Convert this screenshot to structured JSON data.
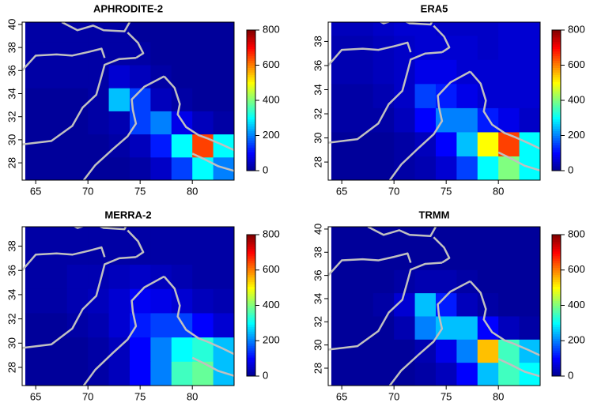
{
  "chart_data": [
    {
      "type": "heatmap",
      "title": "APHRODITE-2",
      "x": [
        65,
        67,
        69,
        71,
        73,
        75,
        77,
        79,
        81,
        83
      ],
      "y": [
        27.5,
        29.5,
        31.5,
        33.5,
        35.5,
        37.5,
        39.5
      ],
      "values": [
        [
          10,
          10,
          10,
          10,
          10,
          20,
          50,
          150,
          300,
          200
        ],
        [
          10,
          10,
          10,
          10,
          20,
          40,
          120,
          300,
          650,
          300
        ],
        [
          10,
          10,
          10,
          20,
          30,
          150,
          200,
          80,
          40,
          20
        ],
        [
          10,
          10,
          10,
          20,
          250,
          150,
          40,
          20,
          10,
          10
        ],
        [
          20,
          20,
          20,
          20,
          60,
          40,
          20,
          10,
          10,
          10
        ],
        [
          20,
          20,
          20,
          20,
          20,
          20,
          10,
          10,
          10,
          10
        ],
        [
          20,
          20,
          20,
          20,
          20,
          10,
          10,
          10,
          10,
          10
        ]
      ],
      "xlim": [
        63.7,
        84
      ],
      "ylim": [
        26.5,
        40.2
      ],
      "xticks": [
        65,
        70,
        75,
        80
      ],
      "yticks": [
        28,
        30,
        32,
        34,
        36,
        38,
        40
      ],
      "colorbar_lim": [
        0,
        800
      ],
      "colorbar_ticks": [
        0,
        200,
        400,
        600,
        800
      ],
      "colormap": [
        "#00008f",
        "#0000ff",
        "#0080ff",
        "#00ffff",
        "#80ff80",
        "#ffff00",
        "#ff8000",
        "#ff0000",
        "#800000"
      ]
    },
    {
      "type": "heatmap",
      "title": "ERA5",
      "x": [
        65,
        67,
        69,
        71,
        73,
        75,
        77,
        79,
        81,
        83
      ],
      "y": [
        27.5,
        29.5,
        31.5,
        33.5,
        35.5,
        37.5,
        39.5
      ],
      "values": [
        [
          10,
          10,
          10,
          20,
          30,
          60,
          150,
          300,
          400,
          300
        ],
        [
          10,
          10,
          10,
          20,
          40,
          100,
          250,
          500,
          650,
          300
        ],
        [
          20,
          20,
          20,
          40,
          100,
          200,
          200,
          120,
          80,
          50
        ],
        [
          20,
          20,
          30,
          50,
          150,
          120,
          80,
          60,
          60,
          60
        ],
        [
          30,
          30,
          40,
          50,
          80,
          80,
          60,
          60,
          60,
          60
        ],
        [
          30,
          30,
          40,
          50,
          60,
          60,
          60,
          50,
          60,
          60
        ],
        [
          40,
          40,
          50,
          60,
          60,
          50,
          50,
          50,
          60,
          60
        ]
      ],
      "xlim": [
        63.7,
        84
      ],
      "ylim": [
        26.5,
        39.6
      ],
      "xticks": [
        65,
        70,
        75,
        80
      ],
      "yticks": [
        28,
        30,
        32,
        34,
        36,
        38
      ],
      "colorbar_lim": [
        0,
        800
      ],
      "colorbar_ticks": [
        0,
        200,
        400,
        600,
        800
      ],
      "colormap": [
        "#00008f",
        "#0000ff",
        "#0080ff",
        "#00ffff",
        "#80ff80",
        "#ffff00",
        "#ff8000",
        "#ff0000",
        "#800000"
      ]
    },
    {
      "type": "heatmap",
      "title": "MERRA-2",
      "x": [
        65,
        67,
        69,
        71,
        73,
        75,
        77,
        79,
        81,
        83
      ],
      "y": [
        27.5,
        29.5,
        31.5,
        33.5,
        35.5,
        37.5,
        39.5
      ],
      "values": [
        [
          10,
          10,
          10,
          20,
          40,
          100,
          200,
          350,
          380,
          250
        ],
        [
          10,
          10,
          10,
          20,
          40,
          100,
          200,
          300,
          330,
          250
        ],
        [
          10,
          10,
          20,
          30,
          60,
          120,
          150,
          150,
          100,
          60
        ],
        [
          20,
          20,
          30,
          40,
          60,
          90,
          80,
          60,
          40,
          30
        ],
        [
          20,
          20,
          30,
          30,
          40,
          50,
          40,
          30,
          20,
          20
        ],
        [
          20,
          20,
          20,
          20,
          20,
          20,
          20,
          20,
          20,
          20
        ],
        [
          20,
          20,
          20,
          20,
          20,
          20,
          20,
          20,
          20,
          20
        ]
      ],
      "xlim": [
        63.7,
        84
      ],
      "ylim": [
        26.5,
        39.6
      ],
      "xticks": [
        65,
        70,
        75,
        80
      ],
      "yticks": [
        28,
        30,
        32,
        34,
        36,
        38
      ],
      "colorbar_lim": [
        0,
        800
      ],
      "colorbar_ticks": [
        0,
        200,
        400,
        600,
        800
      ],
      "colormap": [
        "#00008f",
        "#0000ff",
        "#0080ff",
        "#00ffff",
        "#80ff80",
        "#ffff00",
        "#ff8000",
        "#ff0000",
        "#800000"
      ]
    },
    {
      "type": "heatmap",
      "title": "TRMM",
      "x": [
        65,
        67,
        69,
        71,
        73,
        75,
        77,
        79,
        81,
        83
      ],
      "y": [
        27.5,
        29.5,
        31.5,
        33.5,
        35.5,
        37.5,
        39.5
      ],
      "values": [
        [
          10,
          10,
          10,
          10,
          20,
          40,
          100,
          250,
          350,
          300
        ],
        [
          10,
          10,
          10,
          10,
          30,
          80,
          200,
          550,
          350,
          250
        ],
        [
          10,
          10,
          10,
          30,
          200,
          250,
          250,
          100,
          40,
          20
        ],
        [
          10,
          10,
          20,
          60,
          250,
          120,
          40,
          20,
          10,
          10
        ],
        [
          10,
          10,
          10,
          20,
          30,
          30,
          20,
          10,
          10,
          10
        ],
        [
          10,
          10,
          10,
          10,
          10,
          10,
          10,
          10,
          10,
          10
        ],
        [
          10,
          10,
          10,
          10,
          10,
          10,
          10,
          10,
          10,
          10
        ]
      ],
      "xlim": [
        63.7,
        84
      ],
      "ylim": [
        26.5,
        40.2
      ],
      "xticks": [
        65,
        70,
        75,
        80
      ],
      "yticks": [
        28,
        30,
        32,
        34,
        36,
        38,
        40
      ],
      "colorbar_lim": [
        0,
        800
      ],
      "colorbar_ticks": [
        0,
        200,
        400,
        600,
        800
      ],
      "colormap": [
        "#00008f",
        "#0000ff",
        "#0080ff",
        "#00ffff",
        "#80ff80",
        "#ffff00",
        "#ff8000",
        "#ff0000",
        "#800000"
      ]
    }
  ]
}
